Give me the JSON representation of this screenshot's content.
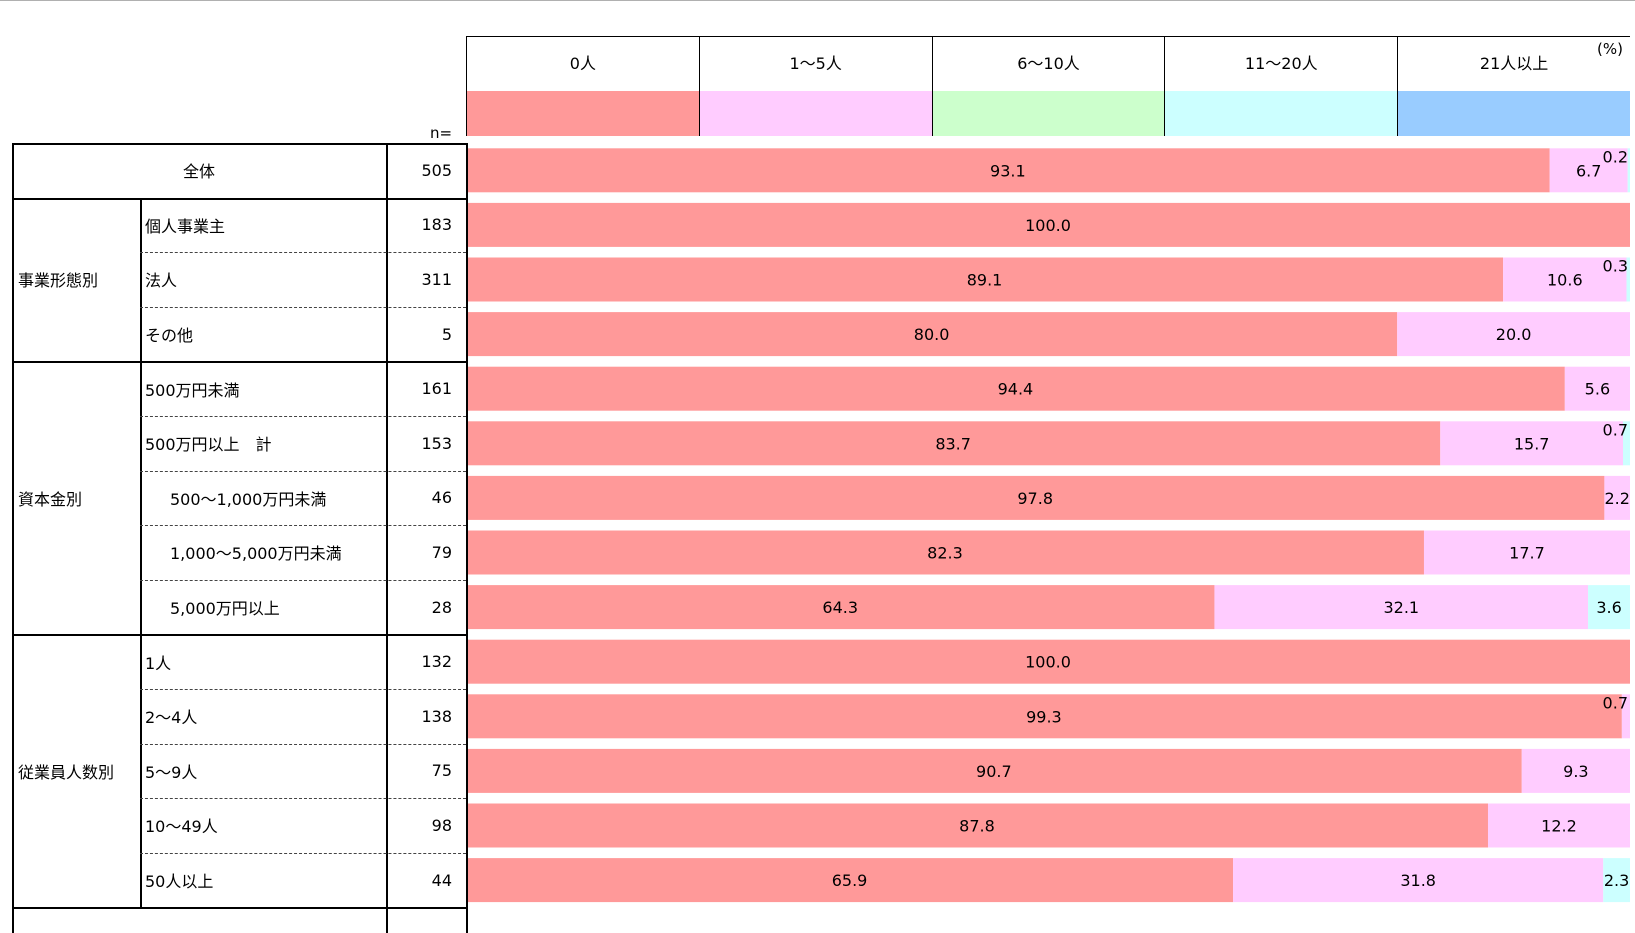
{
  "chart_data": {
    "type": "bar",
    "orientation": "horizontal-stacked-100",
    "unit_label": "(%)",
    "n_label": "n=",
    "legend_position": "top",
    "series": [
      {
        "name": "0人",
        "color": "#ff9999"
      },
      {
        "name": "1〜5人",
        "color": "#ffccff"
      },
      {
        "name": "6〜10人",
        "color": "#ccffcc"
      },
      {
        "name": "11〜20人",
        "color": "#ccffff"
      },
      {
        "name": "21人以上",
        "color": "#99ccff"
      }
    ],
    "rows": [
      {
        "group": "全体",
        "label": "",
        "n": "505",
        "values": [
          93.1,
          6.7,
          0,
          0.2,
          0
        ]
      },
      {
        "group": "事業形態別",
        "label": "個人事業主",
        "n": "183",
        "values": [
          100.0,
          0,
          0,
          0,
          0
        ]
      },
      {
        "group": "事業形態別",
        "label": "法人",
        "n": "311",
        "values": [
          89.1,
          10.6,
          0,
          0.3,
          0
        ]
      },
      {
        "group": "事業形態別",
        "label": "その他",
        "n": "5",
        "values": [
          80.0,
          20.0,
          0,
          0,
          0
        ]
      },
      {
        "group": "資本金別",
        "label": "500万円未満",
        "n": "161",
        "values": [
          94.4,
          5.6,
          0,
          0,
          0
        ]
      },
      {
        "group": "資本金別",
        "label": "500万円以上　計",
        "n": "153",
        "values": [
          83.7,
          15.7,
          0,
          0.7,
          0
        ]
      },
      {
        "group": "資本金別",
        "label": "500〜1,000万円未満",
        "n": "46",
        "values": [
          97.8,
          2.2,
          0,
          0,
          0
        ]
      },
      {
        "group": "資本金別",
        "label": "1,000〜5,000万円未満",
        "n": "79",
        "values": [
          82.3,
          17.7,
          0,
          0,
          0
        ]
      },
      {
        "group": "資本金別",
        "label": "5,000万円以上",
        "n": "28",
        "values": [
          64.3,
          32.1,
          0,
          3.6,
          0
        ]
      },
      {
        "group": "従業員人数別",
        "label": "1人",
        "n": "132",
        "values": [
          100.0,
          0,
          0,
          0,
          0
        ]
      },
      {
        "group": "従業員人数別",
        "label": "2〜4人",
        "n": "138",
        "values": [
          99.3,
          0.7,
          0,
          0,
          0
        ]
      },
      {
        "group": "従業員人数別",
        "label": "5〜9人",
        "n": "75",
        "values": [
          90.7,
          9.3,
          0,
          0,
          0
        ]
      },
      {
        "group": "従業員人数別",
        "label": "10〜49人",
        "n": "98",
        "values": [
          87.8,
          12.2,
          0,
          0,
          0
        ]
      },
      {
        "group": "従業員人数別",
        "label": "50人以上",
        "n": "44",
        "values": [
          65.9,
          31.8,
          0,
          2.3,
          0
        ]
      }
    ],
    "value_labels": [
      [
        "93.1",
        "6.7",
        "",
        "0.2",
        ""
      ],
      [
        "100.0",
        "",
        "",
        "",
        ""
      ],
      [
        "89.1",
        "10.6",
        "",
        "0.3",
        ""
      ],
      [
        "80.0",
        "20.0",
        "",
        "",
        ""
      ],
      [
        "94.4",
        "5.6",
        "",
        "",
        ""
      ],
      [
        "83.7",
        "15.7",
        "",
        "0.7",
        ""
      ],
      [
        "97.8",
        "2.2",
        "",
        "",
        ""
      ],
      [
        "82.3",
        "17.7",
        "",
        "",
        ""
      ],
      [
        "64.3",
        "32.1",
        "",
        "3.6",
        ""
      ],
      [
        "100.0",
        "",
        "",
        "",
        ""
      ],
      [
        "99.3",
        "0.7",
        "",
        "",
        ""
      ],
      [
        "90.7",
        "9.3",
        "",
        "",
        ""
      ],
      [
        "87.8",
        "12.2",
        "",
        "",
        ""
      ],
      [
        "65.9",
        "31.8",
        "",
        "2.3",
        ""
      ]
    ],
    "xlim": [
      0,
      100
    ],
    "grid": false
  }
}
